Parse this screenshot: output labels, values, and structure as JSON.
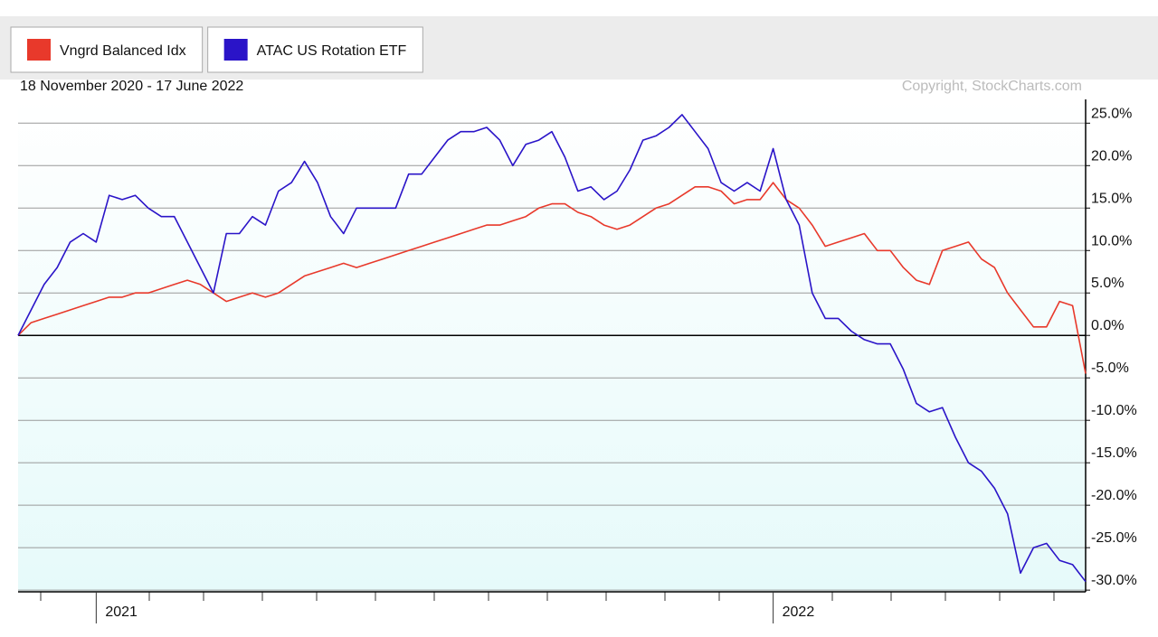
{
  "chart_data": {
    "type": "line",
    "title": "18 November 2020 - 17 June 2022",
    "subtitle": "Copyright, StockCharts.com",
    "categories": [
      null,
      null,
      null,
      null,
      null,
      null,
      "2021",
      null,
      null,
      null,
      null,
      null,
      null,
      null,
      null,
      null,
      null,
      null,
      null,
      null,
      null,
      null,
      null,
      null,
      null,
      null,
      null,
      null,
      null,
      null,
      null,
      null,
      null,
      null,
      null,
      null,
      null,
      null,
      null,
      null,
      null,
      null,
      null,
      null,
      null,
      null,
      null,
      null,
      null,
      null,
      null,
      null,
      null,
      null,
      null,
      null,
      null,
      null,
      "2022",
      null,
      null,
      null,
      null,
      null,
      null,
      null,
      null,
      null,
      null,
      null,
      null,
      null,
      null,
      null,
      null,
      null,
      null,
      null,
      null,
      null,
      null,
      null,
      null
    ],
    "series": [
      {
        "name": "Vngrd Balanced Idx",
        "color": "#e8392b",
        "values": [
          0,
          1.5,
          2,
          2.5,
          3,
          3.5,
          4,
          4.5,
          4.5,
          5,
          5,
          5.5,
          6,
          6.5,
          6,
          5,
          4,
          4.5,
          5,
          4.5,
          5,
          6,
          7,
          7.5,
          8,
          8.5,
          8,
          8.5,
          9,
          9.5,
          10,
          10.5,
          11,
          11.5,
          12,
          12.5,
          13,
          13,
          13.5,
          14,
          15,
          15.5,
          15.5,
          14.5,
          14,
          13,
          12.5,
          13,
          14,
          15,
          15.5,
          16.5,
          17.5,
          17.5,
          17,
          15.5,
          16,
          16,
          18,
          16,
          15,
          13,
          10.5,
          11,
          11.5,
          12,
          10,
          10,
          8,
          6.5,
          6,
          10,
          10.5,
          11,
          9,
          8,
          5,
          3,
          1,
          1,
          4,
          3.5,
          -4.5
        ]
      },
      {
        "name": "ATAC US Rotation ETF",
        "color": "#2a14c8",
        "values": [
          0,
          3,
          6,
          8,
          11,
          12,
          11,
          16.5,
          16,
          16.5,
          15,
          14,
          14,
          11,
          8,
          5,
          12,
          12,
          14,
          13,
          17,
          18,
          20.5,
          18,
          14,
          12,
          15,
          15,
          15,
          15,
          19,
          19,
          21,
          23,
          24,
          24,
          24.5,
          23,
          20,
          22.5,
          23,
          24,
          21,
          17,
          17.5,
          16,
          17,
          19.5,
          23,
          23.5,
          24.5,
          26,
          24,
          22,
          18,
          17,
          18,
          17,
          22,
          16,
          13,
          5,
          2,
          2,
          0.5,
          -0.5,
          -1,
          -1,
          -4,
          -8,
          -9,
          -8.5,
          -12,
          -15,
          -16,
          -18,
          -21,
          -28,
          -25,
          -24.5,
          -26.5,
          -27,
          -29
        ]
      }
    ],
    "ylim": [
      -30.2,
      27.8
    ],
    "yticks": [
      {
        "value": 25,
        "label": "25.0%"
      },
      {
        "value": 20,
        "label": "20.0%"
      },
      {
        "value": 15,
        "label": "15.0%"
      },
      {
        "value": 10,
        "label": "10.0%"
      },
      {
        "value": 5,
        "label": "5.0%"
      },
      {
        "value": 0,
        "label": "0.0%"
      },
      {
        "value": -5,
        "label": "-5.0%"
      },
      {
        "value": -10,
        "label": "-10.0%"
      },
      {
        "value": -15,
        "label": "-15.0%"
      },
      {
        "value": -20,
        "label": "-20.0%"
      },
      {
        "value": -25,
        "label": "-25.0%"
      },
      {
        "value": -30,
        "label": "-30.0%"
      }
    ],
    "grid": true
  }
}
